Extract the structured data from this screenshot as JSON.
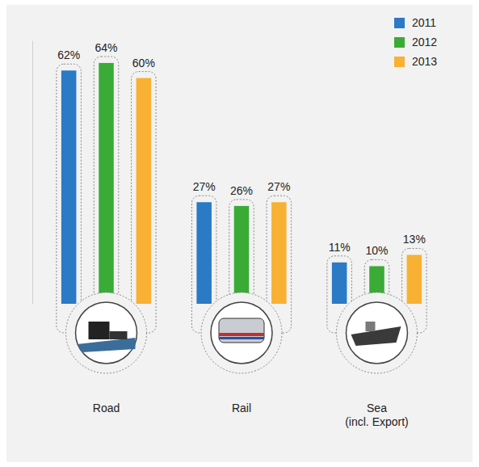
{
  "chart_data": {
    "type": "bar",
    "categories": [
      "Road",
      "Rail",
      "Sea (incl. Export)"
    ],
    "series": [
      {
        "name": "2011",
        "color": "#2a7ac6",
        "values": [
          62,
          27,
          11
        ],
        "value_labels": [
          "62%",
          "27%",
          "11%"
        ]
      },
      {
        "name": "2012",
        "color": "#3aab36",
        "values": [
          64,
          26,
          10
        ],
        "value_labels": [
          "64%",
          "26%",
          "10%"
        ]
      },
      {
        "name": "2013",
        "color": "#f8b133",
        "values": [
          60,
          27,
          13
        ],
        "value_labels": [
          "60%",
          "27%",
          "13%"
        ]
      }
    ],
    "ylim": [
      0,
      70
    ],
    "data_labels": true,
    "tick_labels": "x",
    "legend": "top-right",
    "grid": false
  }
}
